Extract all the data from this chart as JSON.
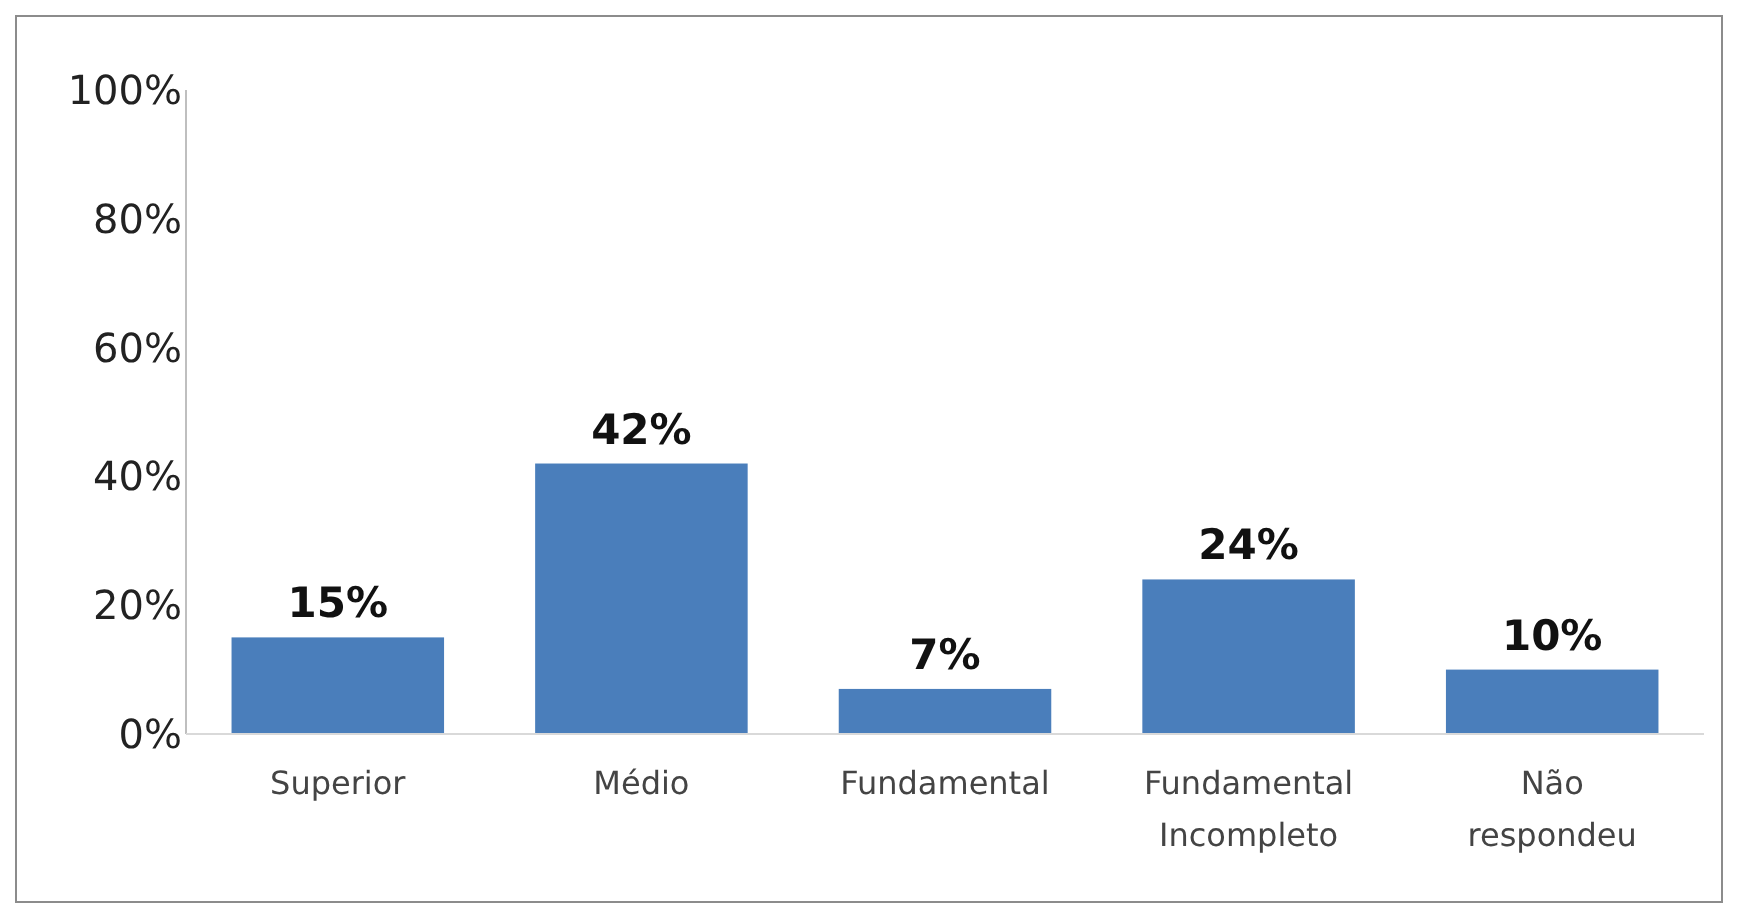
{
  "chart_data": {
    "type": "bar",
    "categories": [
      "Superior",
      "Médio",
      "Fundamental",
      "Fundamental Incompleto",
      "Não respondeu"
    ],
    "values": [
      15,
      42,
      7,
      24,
      10
    ],
    "color": "#4a7ebb",
    "ylim": [
      0,
      100
    ],
    "yticks": [
      {
        "value": 0,
        "label": "0%"
      },
      {
        "value": 20,
        "label": "20%"
      },
      {
        "value": 40,
        "label": "40%"
      },
      {
        "value": 60,
        "label": "60%"
      },
      {
        "value": 80,
        "label": "80%"
      },
      {
        "value": 100,
        "label": "100%"
      }
    ],
    "data_labels": true,
    "value_labels": [
      "15%",
      "42%",
      "7%",
      "24%",
      "10%"
    ],
    "grid": false
  }
}
